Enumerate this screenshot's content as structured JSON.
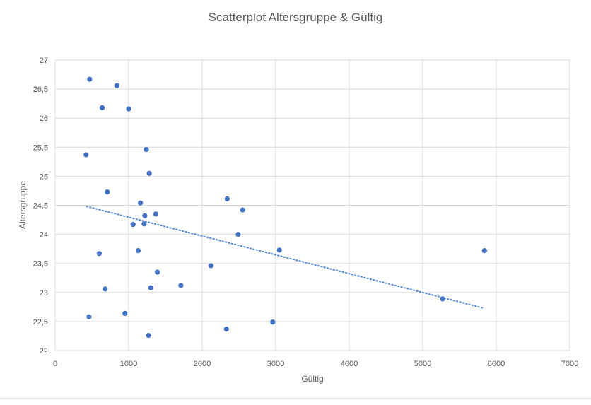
{
  "chart_data": {
    "type": "scatter",
    "title": "Scatterplot Altersgruppe & Gültig",
    "xlabel": "Gültig",
    "ylabel": "Altersgruppe",
    "xlim": [
      0,
      7000
    ],
    "ylim": [
      22,
      27
    ],
    "x_ticks": [
      0,
      1000,
      2000,
      3000,
      4000,
      5000,
      6000,
      7000
    ],
    "x_tick_labels": [
      "0",
      "1000",
      "2000",
      "3000",
      "4000",
      "5000",
      "6000",
      "7000"
    ],
    "y_ticks": [
      22,
      22.5,
      23,
      23.5,
      24,
      24.5,
      25,
      25.5,
      26,
      26.5,
      27
    ],
    "y_tick_labels": [
      "22",
      "22,5",
      "23",
      "23,5",
      "24",
      "24,5",
      "25",
      "25,5",
      "26",
      "26,5",
      "27"
    ],
    "grid": true,
    "legend": "none",
    "marker_color": "#4472c4",
    "trendline": {
      "type": "linear",
      "style": "dotted",
      "color": "#5b8bd6",
      "x_start": 430,
      "y_start": 24.48,
      "x_end": 5830,
      "y_end": 22.73
    },
    "points": [
      {
        "x": 470,
        "y": 26.67
      },
      {
        "x": 840,
        "y": 26.56
      },
      {
        "x": 640,
        "y": 26.18
      },
      {
        "x": 1000,
        "y": 26.16
      },
      {
        "x": 420,
        "y": 25.37
      },
      {
        "x": 1240,
        "y": 25.46
      },
      {
        "x": 1280,
        "y": 25.05
      },
      {
        "x": 710,
        "y": 24.73
      },
      {
        "x": 1160,
        "y": 24.54
      },
      {
        "x": 1220,
        "y": 24.32
      },
      {
        "x": 1370,
        "y": 24.35
      },
      {
        "x": 1060,
        "y": 24.17
      },
      {
        "x": 1210,
        "y": 24.18
      },
      {
        "x": 2340,
        "y": 24.61
      },
      {
        "x": 2550,
        "y": 24.42
      },
      {
        "x": 2490,
        "y": 24.0
      },
      {
        "x": 3050,
        "y": 23.73
      },
      {
        "x": 5840,
        "y": 23.72
      },
      {
        "x": 600,
        "y": 23.67
      },
      {
        "x": 1130,
        "y": 23.72
      },
      {
        "x": 2120,
        "y": 23.46
      },
      {
        "x": 1390,
        "y": 23.35
      },
      {
        "x": 1710,
        "y": 23.12
      },
      {
        "x": 1300,
        "y": 23.08
      },
      {
        "x": 680,
        "y": 23.06
      },
      {
        "x": 5270,
        "y": 22.89
      },
      {
        "x": 950,
        "y": 22.64
      },
      {
        "x": 460,
        "y": 22.58
      },
      {
        "x": 2960,
        "y": 22.49
      },
      {
        "x": 2330,
        "y": 22.37
      },
      {
        "x": 1270,
        "y": 22.26
      }
    ]
  }
}
